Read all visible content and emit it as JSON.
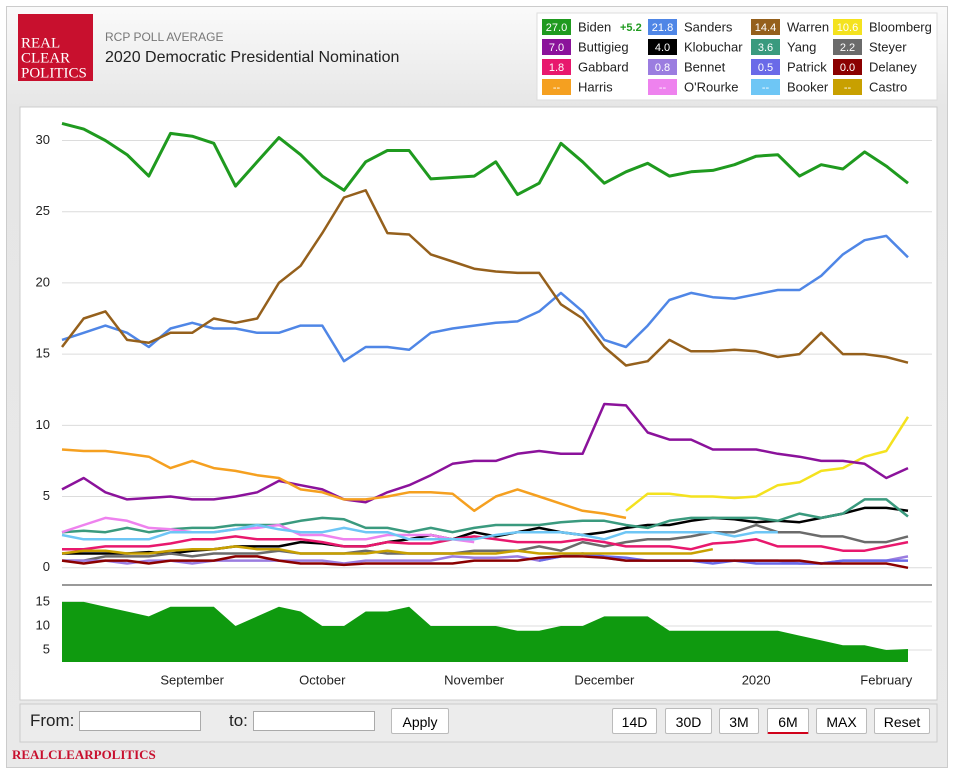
{
  "header": {
    "logo": [
      "REAL",
      "CLEAR",
      "POLITICS"
    ]
  },
  "chart_data": [
    {
      "type": "line",
      "subtitle": "RCP POLL AVERAGE",
      "title": "2020 Democratic Presidential Nomination",
      "categories": [
        null,
        null,
        null,
        null,
        null,
        null,
        "September",
        null,
        null,
        null,
        null,
        null,
        "October",
        null,
        null,
        null,
        null,
        null,
        null,
        "November",
        null,
        null,
        null,
        null,
        null,
        "December",
        null,
        null,
        null,
        null,
        null,
        null,
        "2020",
        null,
        null,
        null,
        null,
        null,
        "February",
        null
      ],
      "ylim": [
        -1,
        32
      ],
      "yticks": [
        0,
        5,
        10,
        15,
        20,
        25,
        30
      ],
      "grid": true,
      "series": [
        {
          "name": "Biden",
          "color": "#1f9a1f",
          "legend_value": "27.0",
          "spread": "+5.2",
          "values": [
            31.2,
            30.8,
            30.0,
            29.0,
            27.5,
            30.5,
            30.3,
            29.8,
            26.8,
            28.5,
            30.2,
            29.0,
            27.5,
            26.5,
            28.5,
            29.3,
            29.3,
            27.3,
            27.4,
            27.5,
            28.5,
            26.2,
            27.0,
            29.8,
            28.5,
            27.0,
            27.8,
            28.4,
            27.5,
            27.8,
            27.9,
            28.3,
            28.9,
            29.0,
            27.5,
            28.3,
            28.0,
            29.2,
            28.2,
            27.0
          ]
        },
        {
          "name": "Sanders",
          "color": "#4f86e6",
          "legend_value": "21.8",
          "values": [
            16.0,
            16.5,
            17.0,
            16.5,
            15.5,
            16.8,
            17.2,
            16.8,
            16.8,
            16.5,
            16.5,
            17.0,
            17.0,
            14.5,
            15.5,
            15.5,
            15.3,
            16.5,
            16.8,
            17.0,
            17.2,
            17.3,
            18.0,
            19.3,
            18.0,
            16.0,
            15.5,
            17.0,
            18.8,
            19.3,
            19.0,
            18.9,
            19.2,
            19.5,
            19.5,
            20.5,
            22.0,
            23.0,
            23.3,
            21.8
          ]
        },
        {
          "name": "Warren",
          "color": "#95601c",
          "legend_value": "14.4",
          "values": [
            15.5,
            17.5,
            18.0,
            16.0,
            15.8,
            16.5,
            16.5,
            17.5,
            17.2,
            17.5,
            20.0,
            21.2,
            23.5,
            26.0,
            26.5,
            23.5,
            23.4,
            22.0,
            21.5,
            21.0,
            20.8,
            20.7,
            20.7,
            18.5,
            17.5,
            15.5,
            14.2,
            14.5,
            16.0,
            15.2,
            15.2,
            15.3,
            15.2,
            14.8,
            15.0,
            16.5,
            15.0,
            15.0,
            14.8,
            14.4
          ]
        },
        {
          "name": "Bloomberg",
          "color": "#f4e21f",
          "legend_value": "10.6",
          "values": [
            null,
            null,
            null,
            null,
            null,
            null,
            null,
            null,
            null,
            null,
            null,
            null,
            null,
            null,
            null,
            null,
            null,
            null,
            null,
            null,
            null,
            null,
            null,
            null,
            null,
            null,
            4.0,
            5.2,
            5.2,
            5.0,
            5.0,
            4.9,
            5.0,
            5.8,
            6.0,
            6.8,
            7.0,
            7.8,
            8.2,
            10.6
          ]
        },
        {
          "name": "Buttigieg",
          "color": "#8b129b",
          "legend_value": "7.0",
          "values": [
            5.5,
            6.3,
            5.3,
            4.8,
            4.9,
            5.0,
            4.8,
            4.8,
            5.0,
            5.3,
            6.1,
            5.8,
            5.5,
            4.8,
            4.6,
            5.3,
            5.8,
            6.5,
            7.3,
            7.5,
            7.5,
            8.0,
            8.2,
            8.0,
            8.0,
            11.5,
            11.4,
            9.5,
            9.0,
            9.0,
            8.3,
            8.3,
            8.3,
            8.0,
            7.8,
            7.5,
            7.5,
            7.3,
            6.3,
            7.0
          ]
        },
        {
          "name": "Klobuchar",
          "color": "#000000",
          "legend_value": "4.0",
          "values": [
            1.0,
            1.0,
            1.0,
            1.0,
            1.1,
            1.0,
            1.2,
            1.3,
            1.5,
            1.5,
            1.5,
            1.8,
            1.7,
            1.5,
            1.5,
            1.8,
            2.0,
            2.3,
            2.0,
            2.5,
            2.2,
            2.5,
            2.8,
            2.5,
            2.3,
            2.5,
            2.8,
            3.0,
            3.0,
            3.3,
            3.5,
            3.4,
            3.2,
            3.3,
            3.2,
            3.5,
            3.8,
            4.2,
            4.2,
            4.0
          ]
        },
        {
          "name": "Yang",
          "color": "#3a9a7e",
          "legend_value": "3.6",
          "values": [
            2.5,
            2.6,
            2.5,
            2.8,
            2.5,
            2.7,
            2.8,
            2.8,
            3.0,
            3.0,
            3.0,
            3.3,
            3.5,
            3.4,
            2.8,
            2.8,
            2.5,
            2.8,
            2.5,
            2.8,
            3.0,
            3.0,
            3.0,
            3.2,
            3.3,
            3.3,
            3.0,
            2.8,
            3.3,
            3.5,
            3.5,
            3.5,
            3.5,
            3.3,
            3.8,
            3.5,
            3.8,
            4.8,
            4.8,
            3.6
          ]
        },
        {
          "name": "Steyer",
          "color": "#6b6b6b",
          "legend_value": "2.2",
          "values": [
            0.5,
            0.5,
            0.8,
            0.8,
            0.8,
            1.0,
            0.8,
            1.0,
            1.0,
            1.0,
            1.2,
            1.0,
            1.0,
            1.0,
            1.2,
            1.0,
            1.0,
            1.0,
            1.0,
            1.2,
            1.2,
            1.2,
            1.5,
            1.2,
            1.8,
            1.5,
            1.8,
            2.0,
            2.0,
            2.2,
            2.5,
            2.5,
            3.0,
            2.5,
            2.5,
            2.2,
            2.2,
            1.8,
            1.8,
            2.2
          ]
        },
        {
          "name": "Gabbard",
          "color": "#e8186d",
          "legend_value": "1.8",
          "values": [
            1.3,
            1.3,
            1.5,
            1.5,
            1.5,
            1.7,
            2.0,
            2.0,
            2.2,
            2.0,
            2.0,
            2.0,
            1.8,
            1.5,
            1.5,
            1.8,
            1.7,
            1.7,
            2.0,
            2.2,
            2.0,
            1.8,
            1.8,
            1.8,
            2.0,
            1.8,
            1.5,
            1.5,
            1.5,
            1.3,
            1.7,
            1.8,
            2.0,
            1.5,
            1.5,
            1.5,
            1.2,
            1.2,
            1.5,
            1.8
          ]
        },
        {
          "name": "Bennet",
          "color": "#9b7de0",
          "legend_value": "0.8",
          "values": [
            0.5,
            0.5,
            0.5,
            0.3,
            0.5,
            0.5,
            0.3,
            0.5,
            0.5,
            0.5,
            0.5,
            0.5,
            0.5,
            0.3,
            0.5,
            0.5,
            0.5,
            0.5,
            0.8,
            0.7,
            0.7,
            0.8,
            0.5,
            0.8,
            1.0,
            0.7,
            0.5,
            0.5,
            0.5,
            0.5,
            0.5,
            0.5,
            0.5,
            0.5,
            0.3,
            0.3,
            0.5,
            0.5,
            0.5,
            0.8
          ]
        },
        {
          "name": "Patrick",
          "color": "#6a6ae8",
          "legend_value": "0.5",
          "values": [
            null,
            null,
            null,
            null,
            null,
            null,
            null,
            null,
            null,
            null,
            null,
            null,
            null,
            null,
            null,
            null,
            null,
            null,
            null,
            null,
            null,
            null,
            0.5,
            0.8,
            1.0,
            0.8,
            0.7,
            0.5,
            0.5,
            0.5,
            0.3,
            0.5,
            0.3,
            0.3,
            0.3,
            0.3,
            0.5,
            0.5,
            0.5,
            0.5
          ]
        },
        {
          "name": "Delaney",
          "color": "#8b0000",
          "legend_value": "0.0",
          "values": [
            0.5,
            0.3,
            0.5,
            0.5,
            0.3,
            0.5,
            0.5,
            0.5,
            0.8,
            0.8,
            0.5,
            0.3,
            0.3,
            0.2,
            0.3,
            0.3,
            0.3,
            0.3,
            0.3,
            0.5,
            0.5,
            0.5,
            0.7,
            0.8,
            0.8,
            0.7,
            0.5,
            0.5,
            0.5,
            0.5,
            0.5,
            0.5,
            0.5,
            0.5,
            0.5,
            0.3,
            0.3,
            0.3,
            0.3,
            0.0
          ]
        },
        {
          "name": "Harris",
          "color": "#f5a020",
          "legend_value": "--",
          "values": [
            8.3,
            8.2,
            8.2,
            8.0,
            7.8,
            7.0,
            7.5,
            7.0,
            6.8,
            6.5,
            6.3,
            5.5,
            5.3,
            4.8,
            4.8,
            5.0,
            5.3,
            5.3,
            5.2,
            4.0,
            5.0,
            5.5,
            5.0,
            4.5,
            4.0,
            3.8,
            3.5,
            null,
            null,
            null,
            null,
            null,
            null,
            null,
            null,
            null,
            null,
            null,
            null,
            null
          ]
        },
        {
          "name": "O'Rourke",
          "color": "#ee82ee",
          "legend_value": "--",
          "values": [
            2.5,
            3.0,
            3.5,
            3.3,
            2.8,
            2.7,
            2.5,
            2.5,
            2.7,
            2.8,
            3.0,
            2.3,
            2.3,
            2.0,
            2.0,
            2.3,
            2.3,
            2.3,
            2.0,
            1.8,
            null,
            null,
            null,
            null,
            null,
            null,
            null,
            null,
            null,
            null,
            null,
            null,
            null,
            null,
            null,
            null,
            null,
            null,
            null,
            null
          ]
        },
        {
          "name": "Booker",
          "color": "#6ec6f5",
          "legend_value": "--",
          "values": [
            2.3,
            2.0,
            2.0,
            2.0,
            2.0,
            2.5,
            2.5,
            2.5,
            2.7,
            3.0,
            2.7,
            2.5,
            2.5,
            2.8,
            2.5,
            2.5,
            2.0,
            2.0,
            2.0,
            2.0,
            2.3,
            2.5,
            2.5,
            2.5,
            2.3,
            2.0,
            2.5,
            2.5,
            2.5,
            2.5,
            2.5,
            2.2,
            2.5,
            2.5,
            null,
            null,
            null,
            null,
            null,
            null
          ]
        },
        {
          "name": "Castro",
          "color": "#c8a000",
          "legend_value": "--",
          "values": [
            1.0,
            1.2,
            1.2,
            1.0,
            1.0,
            1.2,
            1.3,
            1.3,
            1.5,
            1.3,
            1.3,
            1.0,
            1.0,
            1.0,
            1.0,
            1.2,
            1.0,
            1.0,
            1.0,
            1.0,
            1.0,
            1.2,
            1.0,
            1.0,
            1.0,
            1.0,
            1.0,
            1.0,
            1.0,
            1.0,
            1.3,
            null,
            null,
            null,
            null,
            null,
            null,
            null,
            null,
            null
          ]
        }
      ]
    },
    {
      "type": "area",
      "color": "#0f9a0f",
      "ylim": [
        2.5,
        17.9
      ],
      "yticks": [
        5,
        10,
        15
      ],
      "grid": true,
      "values": [
        15,
        15,
        14,
        13,
        12,
        14,
        14,
        14,
        10,
        12,
        14,
        13,
        10,
        10,
        13,
        13,
        14,
        10,
        10,
        10,
        10,
        9,
        9,
        10,
        10,
        12,
        12,
        12,
        9,
        9,
        9,
        9,
        9,
        9,
        8,
        7,
        6,
        6,
        5,
        5.2
      ]
    }
  ],
  "controls": {
    "from": "From:",
    "to": "to:",
    "apply": "Apply",
    "ranges": [
      "14D",
      "30D",
      "3M",
      "6M",
      "MAX",
      "Reset"
    ]
  },
  "footer": "REALCLEARPOLITICS"
}
